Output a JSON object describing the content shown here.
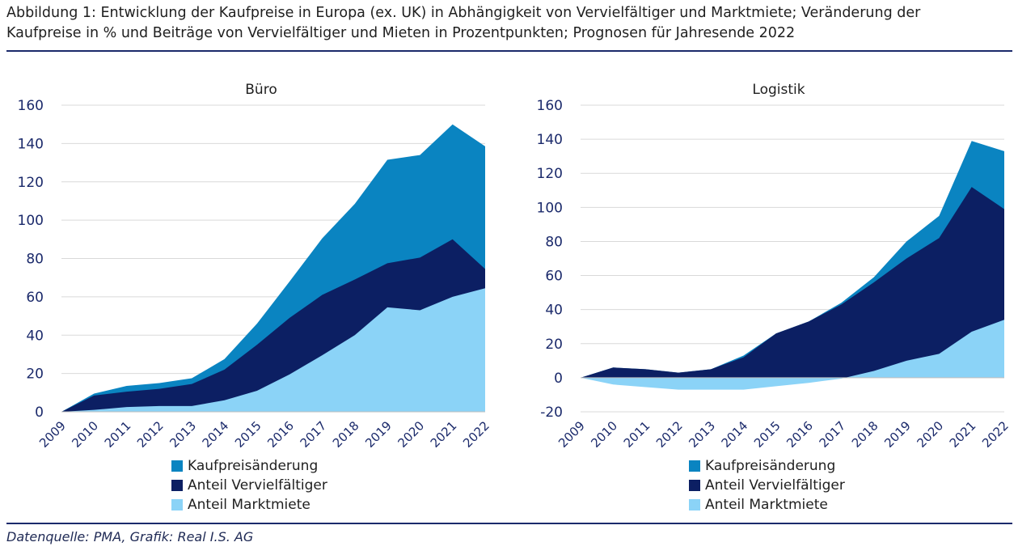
{
  "figure": {
    "title": "Abbildung 1: Entwicklung der Kaufpreise in Europa (ex. UK) in Abhängigkeit von Vervielfältiger und Marktmiete; Veränderung der\nKaufpreise in % und Beiträge von Vervielfältiger und Mieten in Prozentpunkten; Prognosen für Jahresende 2022",
    "source": "Datenquelle: PMA, Grafik: Real I.S. AG"
  },
  "colors": {
    "kaufpreis": "#0a84c1",
    "vervielfaeltiger": "#0c1f63",
    "marktmiete": "#8bd3f7",
    "grid": "#d9d9d9",
    "axis_text": "#1b2a6b"
  },
  "chart_data": [
    {
      "type": "area",
      "title": "Büro",
      "x": [
        "2009",
        "2010",
        "2011",
        "2012",
        "2013",
        "2014",
        "2015",
        "2016",
        "2017",
        "2018",
        "2019",
        "2020",
        "2021",
        "2022"
      ],
      "ylim": [
        0,
        160
      ],
      "yticks": [
        0,
        20,
        40,
        60,
        80,
        100,
        120,
        140,
        160
      ],
      "grid": true,
      "legend_position": "bottom-left",
      "series": [
        {
          "name": "Kaufpreisänderung",
          "values": [
            0,
            9.5,
            13.5,
            15,
            17.5,
            27.5,
            46,
            68,
            90.5,
            108.5,
            131.5,
            134,
            150,
            138.5
          ]
        },
        {
          "name": "Anteil Vervielfältiger",
          "values": [
            0,
            8.5,
            10.5,
            12,
            14.5,
            22,
            35,
            49,
            61,
            69,
            77.5,
            80.5,
            90,
            74.5
          ]
        },
        {
          "name": "Anteil Marktmiete",
          "values": [
            0,
            1,
            2.5,
            3,
            3,
            6,
            11,
            19.5,
            29.5,
            40,
            54.5,
            53,
            60,
            64.5
          ]
        }
      ]
    },
    {
      "type": "area",
      "title": "Logistik",
      "x": [
        "2009",
        "2010",
        "2011",
        "2012",
        "2013",
        "2014",
        "2015",
        "2016",
        "2017",
        "2018",
        "2019",
        "2020",
        "2021",
        "2022"
      ],
      "ylim": [
        -20,
        160
      ],
      "yticks": [
        -20,
        0,
        20,
        40,
        60,
        80,
        100,
        120,
        140,
        160
      ],
      "grid": true,
      "legend_position": "bottom-left",
      "series": [
        {
          "name": "Kaufpreisänderung",
          "values": [
            0,
            6,
            5,
            3,
            5,
            13,
            26,
            33,
            44,
            59,
            80,
            95,
            139,
            133
          ]
        },
        {
          "name": "Anteil Vervielfältiger",
          "values": [
            0,
            6,
            5,
            3,
            5,
            12,
            26,
            33,
            43,
            56,
            70,
            82,
            112,
            99
          ]
        },
        {
          "name": "Anteil Marktmiete",
          "values": [
            0,
            -4,
            -5.5,
            -7,
            -7,
            -7,
            -5,
            -3,
            -0.5,
            4,
            10,
            14,
            27,
            34
          ]
        }
      ]
    }
  ]
}
